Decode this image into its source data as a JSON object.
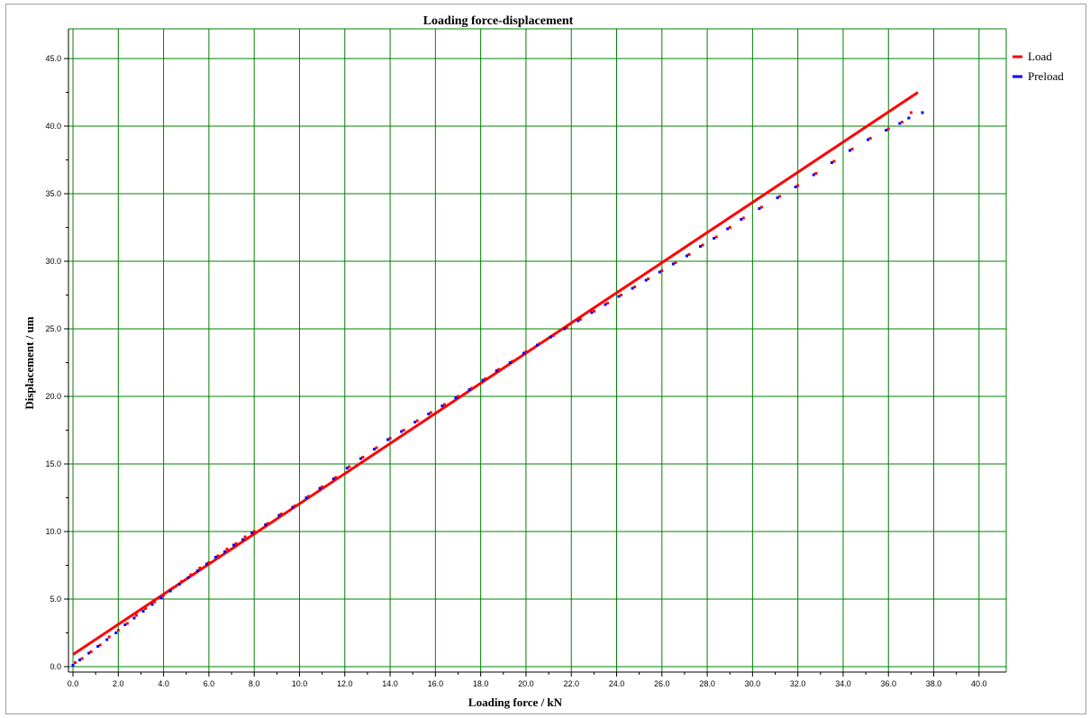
{
  "chart_data": {
    "type": "scatter",
    "title": "Loading force-displacement",
    "xlabel": "Loading force  / kN",
    "ylabel": "Displacement  / um",
    "xlim": [
      -0.2,
      41.2
    ],
    "ylim": [
      -0.4,
      47.2
    ],
    "x_ticks": [
      0,
      2,
      4,
      6,
      8,
      10,
      12,
      14,
      16,
      18,
      20,
      22,
      24,
      26,
      28,
      30,
      32,
      34,
      36,
      38,
      40
    ],
    "x_tick_labels": [
      "0.0",
      "2.0",
      "4.0",
      "6.0",
      "8.0",
      "10.0",
      "12.0",
      "14.0",
      "16.0",
      "18.0",
      "20.0",
      "22.0",
      "24.0",
      "26.0",
      "28.0",
      "30.0",
      "32.0",
      "34.0",
      "36.0",
      "38.0",
      "40.0"
    ],
    "y_ticks": [
      0,
      5,
      10,
      15,
      20,
      25,
      30,
      35,
      40,
      45
    ],
    "y_tick_labels": [
      "0.0",
      "5.0",
      "10.0",
      "15.0",
      "20.0",
      "25.0",
      "30.0",
      "35.0",
      "40.0",
      "45.0"
    ],
    "grid": true,
    "grid_color": "#008000",
    "legend_position": "right",
    "series": [
      {
        "name": "Load",
        "color": "#ff0000",
        "fit_line": {
          "x": [
            0.0,
            37.3
          ],
          "y": [
            0.9,
            42.5
          ]
        },
        "points": [
          [
            0.1,
            0.3
          ],
          [
            0.4,
            0.6
          ],
          [
            0.8,
            1.1
          ],
          [
            1.2,
            1.6
          ],
          [
            1.6,
            2.2
          ],
          [
            2.0,
            2.7
          ],
          [
            2.4,
            3.2
          ],
          [
            2.8,
            3.8
          ],
          [
            3.2,
            4.3
          ],
          [
            3.6,
            4.8
          ],
          [
            4.0,
            5.3
          ],
          [
            4.4,
            5.8
          ],
          [
            4.8,
            6.3
          ],
          [
            5.2,
            6.8
          ],
          [
            5.6,
            7.3
          ],
          [
            6.0,
            7.7
          ],
          [
            6.4,
            8.2
          ],
          [
            6.8,
            8.7
          ],
          [
            7.2,
            9.1
          ],
          [
            7.6,
            9.6
          ],
          [
            8.0,
            10.0
          ],
          [
            8.6,
            10.6
          ],
          [
            9.2,
            11.3
          ],
          [
            9.8,
            11.9
          ],
          [
            10.4,
            12.6
          ],
          [
            11.0,
            13.3
          ],
          [
            11.6,
            14.0
          ],
          [
            12.2,
            14.8
          ],
          [
            12.8,
            15.5
          ],
          [
            13.4,
            16.2
          ],
          [
            14.0,
            16.9
          ],
          [
            14.6,
            17.5
          ],
          [
            15.2,
            18.2
          ],
          [
            15.8,
            18.8
          ],
          [
            16.4,
            19.4
          ],
          [
            17.0,
            20.0
          ],
          [
            17.6,
            20.6
          ],
          [
            18.2,
            21.3
          ],
          [
            18.8,
            22.0
          ],
          [
            19.4,
            22.6
          ],
          [
            20.0,
            23.3
          ],
          [
            20.6,
            23.9
          ],
          [
            21.2,
            24.5
          ],
          [
            21.8,
            25.1
          ],
          [
            22.4,
            25.7
          ],
          [
            23.0,
            26.3
          ],
          [
            23.6,
            26.9
          ],
          [
            24.2,
            27.5
          ],
          [
            24.8,
            28.1
          ],
          [
            25.4,
            28.7
          ],
          [
            26.0,
            29.3
          ],
          [
            26.6,
            29.9
          ],
          [
            27.2,
            30.5
          ],
          [
            27.8,
            31.2
          ],
          [
            28.4,
            31.8
          ],
          [
            29.0,
            32.5
          ],
          [
            29.6,
            33.2
          ],
          [
            30.4,
            34.0
          ],
          [
            31.2,
            34.8
          ],
          [
            32.0,
            35.6
          ],
          [
            32.8,
            36.5
          ],
          [
            33.6,
            37.4
          ],
          [
            34.4,
            38.3
          ],
          [
            35.2,
            39.1
          ],
          [
            36.0,
            39.8
          ],
          [
            36.6,
            40.3
          ],
          [
            37.0,
            41.0
          ]
        ]
      },
      {
        "name": "Preload",
        "color": "#0000ff",
        "fit_line": {
          "x": [
            0.0,
            37.3
          ],
          "y": [
            0.9,
            42.5
          ]
        },
        "points": [
          [
            0.0,
            0.1
          ],
          [
            0.3,
            0.5
          ],
          [
            0.7,
            1.0
          ],
          [
            1.1,
            1.5
          ],
          [
            1.5,
            2.0
          ],
          [
            1.9,
            2.5
          ],
          [
            2.3,
            3.1
          ],
          [
            2.7,
            3.6
          ],
          [
            3.1,
            4.1
          ],
          [
            3.5,
            4.6
          ],
          [
            3.9,
            5.1
          ],
          [
            4.3,
            5.6
          ],
          [
            4.7,
            6.1
          ],
          [
            5.1,
            6.6
          ],
          [
            5.5,
            7.1
          ],
          [
            5.9,
            7.6
          ],
          [
            6.3,
            8.1
          ],
          [
            6.7,
            8.5
          ],
          [
            7.1,
            9.0
          ],
          [
            7.5,
            9.4
          ],
          [
            7.9,
            9.9
          ],
          [
            8.5,
            10.5
          ],
          [
            9.1,
            11.2
          ],
          [
            9.7,
            11.8
          ],
          [
            10.3,
            12.5
          ],
          [
            10.9,
            13.2
          ],
          [
            11.5,
            13.9
          ],
          [
            12.1,
            14.7
          ],
          [
            12.7,
            15.4
          ],
          [
            13.3,
            16.1
          ],
          [
            13.9,
            16.8
          ],
          [
            14.5,
            17.4
          ],
          [
            15.1,
            18.1
          ],
          [
            15.7,
            18.7
          ],
          [
            16.3,
            19.3
          ],
          [
            16.9,
            19.9
          ],
          [
            17.5,
            20.5
          ],
          [
            18.1,
            21.2
          ],
          [
            18.7,
            21.9
          ],
          [
            19.3,
            22.5
          ],
          [
            19.9,
            23.2
          ],
          [
            20.5,
            23.8
          ],
          [
            21.1,
            24.4
          ],
          [
            21.7,
            25.0
          ],
          [
            22.3,
            25.6
          ],
          [
            22.9,
            26.2
          ],
          [
            23.5,
            26.8
          ],
          [
            24.1,
            27.4
          ],
          [
            24.7,
            28.0
          ],
          [
            25.3,
            28.6
          ],
          [
            25.9,
            29.2
          ],
          [
            26.5,
            29.8
          ],
          [
            27.1,
            30.4
          ],
          [
            27.7,
            31.1
          ],
          [
            28.3,
            31.7
          ],
          [
            28.9,
            32.4
          ],
          [
            29.5,
            33.1
          ],
          [
            30.3,
            33.9
          ],
          [
            31.1,
            34.7
          ],
          [
            31.9,
            35.5
          ],
          [
            32.7,
            36.4
          ],
          [
            33.5,
            37.3
          ],
          [
            34.3,
            38.2
          ],
          [
            35.1,
            39.0
          ],
          [
            35.9,
            39.7
          ],
          [
            36.5,
            40.2
          ],
          [
            36.9,
            40.6
          ],
          [
            37.5,
            41.0
          ]
        ]
      }
    ]
  }
}
